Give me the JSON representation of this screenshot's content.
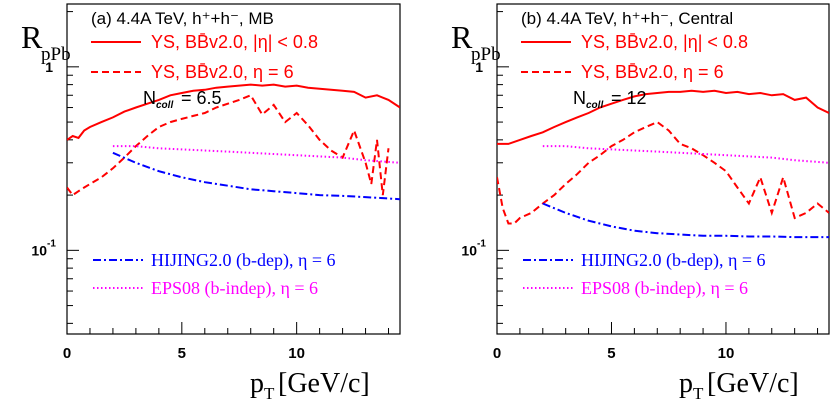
{
  "chart_data": [
    {
      "type": "line",
      "panel_label": "(a) 4.4A TeV, h⁺+h⁻, MB",
      "ylabel_main": "R",
      "ylabel_sub": "pPb",
      "xlabel": "p",
      "xlabel_sub": "T",
      "xlabel_unit": "[GeV/c]",
      "ncoll_label": "N",
      "ncoll_sub": "coll",
      "ncoll_value": "= 6.5",
      "x_scale": "linear",
      "y_scale": "log",
      "xlim": [
        0,
        14.5
      ],
      "ylim": [
        0.035,
        2.2
      ],
      "x_ticks": [
        "0",
        "5",
        "10"
      ],
      "y_tick_one": "1",
      "y_tick_tenth_base": "10",
      "y_tick_tenth_exp": "-1",
      "series": [
        {
          "name": "YS, BB̄v2.0, |η| < 0.8",
          "color": "#ff0000",
          "dash": "solid",
          "x": [
            0,
            0.25,
            0.5,
            0.75,
            1,
            1.5,
            2,
            2.5,
            3,
            3.5,
            4,
            4.5,
            5,
            5.5,
            6,
            6.5,
            7,
            7.5,
            8,
            8.5,
            9,
            9.5,
            10,
            10.5,
            11,
            11.5,
            12,
            12.5,
            13,
            13.5,
            14,
            14.5
          ],
          "y": [
            0.4,
            0.42,
            0.41,
            0.45,
            0.47,
            0.5,
            0.53,
            0.57,
            0.6,
            0.63,
            0.66,
            0.7,
            0.72,
            0.74,
            0.75,
            0.77,
            0.78,
            0.79,
            0.8,
            0.79,
            0.8,
            0.78,
            0.79,
            0.77,
            0.76,
            0.75,
            0.74,
            0.73,
            0.68,
            0.7,
            0.66,
            0.6
          ]
        },
        {
          "name": "YS, BB̄v2.0, η = 6",
          "color": "#ff0000",
          "dash": "dashed",
          "x": [
            0,
            0.25,
            0.5,
            0.75,
            1,
            1.5,
            2,
            2.5,
            3,
            3.5,
            4,
            4.5,
            5,
            5.5,
            6,
            6.5,
            7,
            7.5,
            8,
            8.5,
            9,
            9.5,
            10,
            10.5,
            11,
            11.5,
            12,
            12.5,
            13,
            13.25,
            13.5,
            13.75,
            14
          ],
          "y": [
            0.22,
            0.2,
            0.21,
            0.22,
            0.23,
            0.25,
            0.28,
            0.32,
            0.37,
            0.42,
            0.47,
            0.5,
            0.52,
            0.54,
            0.56,
            0.6,
            0.63,
            0.66,
            0.7,
            0.55,
            0.62,
            0.5,
            0.56,
            0.48,
            0.4,
            0.35,
            0.32,
            0.45,
            0.3,
            0.23,
            0.4,
            0.2,
            0.36
          ]
        },
        {
          "name": "HIJING2.0 (b-dep), η = 6",
          "color": "#0000ff",
          "dash": "dashdot",
          "x": [
            2,
            3,
            4,
            5,
            6,
            7,
            8,
            9,
            10,
            11,
            12,
            13,
            14.5
          ],
          "y": [
            0.34,
            0.3,
            0.27,
            0.25,
            0.235,
            0.225,
            0.215,
            0.21,
            0.205,
            0.2,
            0.198,
            0.195,
            0.19
          ]
        },
        {
          "name": "EPS08 (b-indep), η = 6",
          "color": "#ff00ff",
          "dash": "dotted",
          "x": [
            2,
            3,
            4,
            5,
            6,
            7,
            8,
            9,
            10,
            11,
            12,
            13,
            14.5
          ],
          "y": [
            0.37,
            0.37,
            0.36,
            0.355,
            0.35,
            0.345,
            0.34,
            0.335,
            0.33,
            0.325,
            0.32,
            0.31,
            0.3
          ]
        }
      ]
    },
    {
      "type": "line",
      "panel_label": "(b) 4.4A TeV, h⁺+h⁻, Central",
      "ylabel_main": "R",
      "ylabel_sub": "pPb",
      "xlabel": "p",
      "xlabel_sub": "T",
      "xlabel_unit": "[GeV/c]",
      "ncoll_label": "N",
      "ncoll_sub": "coll",
      "ncoll_value": "= 12",
      "x_scale": "linear",
      "y_scale": "log",
      "xlim": [
        0,
        14.5
      ],
      "ylim": [
        0.035,
        2.2
      ],
      "x_ticks": [
        "0",
        "5",
        "10"
      ],
      "y_tick_one": "1",
      "y_tick_tenth_base": "10",
      "y_tick_tenth_exp": "-1",
      "series": [
        {
          "name": "YS, BB̄v2.0, |η| < 0.8",
          "color": "#ff0000",
          "dash": "solid",
          "x": [
            0,
            0.5,
            1,
            1.5,
            2,
            2.5,
            3,
            3.5,
            4,
            4.5,
            5,
            5.5,
            6,
            6.5,
            7,
            7.5,
            8,
            8.5,
            9,
            9.5,
            10,
            10.5,
            11,
            11.5,
            12,
            12.5,
            13,
            13.5,
            14,
            14.5
          ],
          "y": [
            0.38,
            0.38,
            0.4,
            0.42,
            0.44,
            0.47,
            0.5,
            0.53,
            0.56,
            0.6,
            0.63,
            0.66,
            0.69,
            0.71,
            0.72,
            0.73,
            0.73,
            0.74,
            0.73,
            0.74,
            0.72,
            0.73,
            0.71,
            0.72,
            0.7,
            0.71,
            0.66,
            0.68,
            0.6,
            0.56
          ]
        },
        {
          "name": "YS, BB̄v2.0, η = 6",
          "color": "#ff0000",
          "dash": "dashed",
          "x": [
            0,
            0.25,
            0.5,
            0.75,
            1,
            1.5,
            2,
            2.5,
            3,
            3.5,
            4,
            4.5,
            5,
            5.5,
            6,
            6.5,
            7,
            7.5,
            8,
            8.5,
            9,
            9.5,
            10,
            10.5,
            11,
            11.5,
            12,
            12.5,
            13,
            13.5,
            14,
            14.5
          ],
          "y": [
            0.25,
            0.17,
            0.14,
            0.14,
            0.15,
            0.16,
            0.18,
            0.2,
            0.23,
            0.26,
            0.3,
            0.33,
            0.37,
            0.4,
            0.44,
            0.47,
            0.5,
            0.45,
            0.38,
            0.36,
            0.33,
            0.3,
            0.27,
            0.22,
            0.18,
            0.25,
            0.16,
            0.25,
            0.15,
            0.16,
            0.18,
            0.16
          ]
        },
        {
          "name": "HIJING2.0 (b-dep), η = 6",
          "color": "#0000ff",
          "dash": "dashdot",
          "x": [
            2,
            3,
            4,
            5,
            6,
            7,
            8,
            9,
            10,
            11,
            12,
            13,
            14.5
          ],
          "y": [
            0.18,
            0.16,
            0.145,
            0.135,
            0.128,
            0.124,
            0.122,
            0.12,
            0.12,
            0.119,
            0.119,
            0.118,
            0.118
          ]
        },
        {
          "name": "EPS08 (b-indep), η = 6",
          "color": "#ff00ff",
          "dash": "dotted",
          "x": [
            2,
            3,
            4,
            5,
            6,
            7,
            8,
            9,
            10,
            11,
            12,
            13,
            14.5
          ],
          "y": [
            0.37,
            0.37,
            0.36,
            0.355,
            0.35,
            0.345,
            0.34,
            0.335,
            0.33,
            0.325,
            0.32,
            0.31,
            0.3
          ]
        }
      ]
    }
  ]
}
